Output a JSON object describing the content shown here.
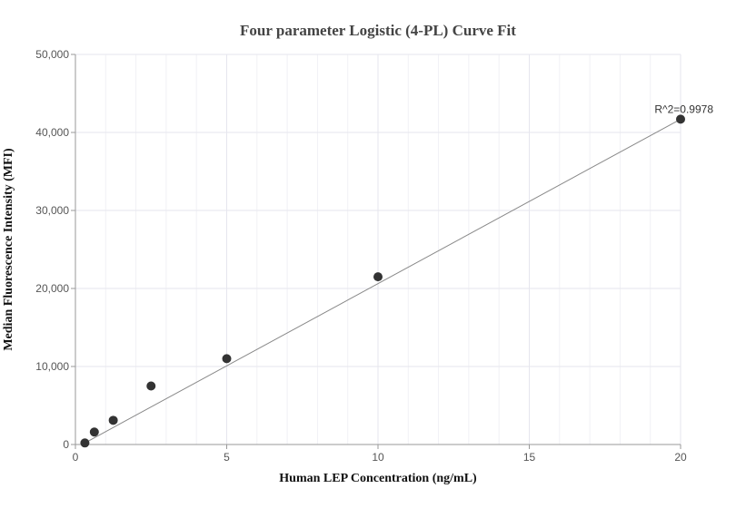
{
  "chart_data": {
    "type": "scatter",
    "title": "Four parameter Logistic (4-PL) Curve Fit",
    "xlabel": "Human LEP Concentration (ng/mL)",
    "ylabel": "Median Fluorescence Intensity (MFI)",
    "xlim": [
      0,
      20
    ],
    "ylim": [
      0,
      50000
    ],
    "x_ticks": [
      0,
      5,
      10,
      15,
      20
    ],
    "y_ticks": [
      0,
      10000,
      20000,
      30000,
      40000,
      50000
    ],
    "x_tick_labels": [
      "0",
      "5",
      "10",
      "15",
      "20"
    ],
    "y_tick_labels": [
      "0",
      "10,000",
      "20,000",
      "30,000",
      "40,000",
      "50,000"
    ],
    "grid": true,
    "points": [
      {
        "x": 0.3125,
        "y": 200
      },
      {
        "x": 0.625,
        "y": 1600
      },
      {
        "x": 1.25,
        "y": 3100
      },
      {
        "x": 2.5,
        "y": 7500
      },
      {
        "x": 5,
        "y": 11000
      },
      {
        "x": 10,
        "y": 21500
      },
      {
        "x": 20,
        "y": 41700
      }
    ],
    "fit_line": [
      {
        "x": 0.3125,
        "y": 200
      },
      {
        "x": 20,
        "y": 41700
      }
    ],
    "annotation": {
      "text": "R^2=0.9978",
      "x": 20,
      "y": 41700
    },
    "colors": {
      "points": "#333333",
      "fit_line": "#888888",
      "grid": "#e6e6ee",
      "axis": "#999999"
    }
  }
}
